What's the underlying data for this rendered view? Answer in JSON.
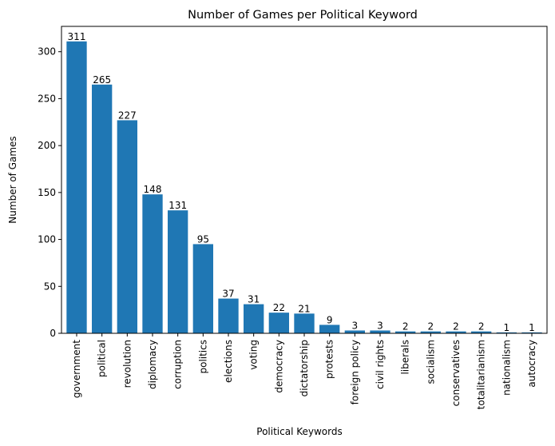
{
  "chart_data": {
    "type": "bar",
    "title": "Number of Games per Political Keyword",
    "xlabel": "Political Keywords",
    "ylabel": "Number of Games",
    "categories": [
      "government",
      "political",
      "revolution",
      "diplomacy",
      "corruption",
      "politics",
      "elections",
      "voting",
      "democracy",
      "dictatorship",
      "protests",
      "foreign policy",
      "civil rights",
      "liberals",
      "socialism",
      "conservatives",
      "totalitarianism",
      "nationalism",
      "autocracy"
    ],
    "values": [
      311,
      265,
      227,
      148,
      131,
      95,
      37,
      31,
      22,
      21,
      9,
      3,
      3,
      2,
      2,
      2,
      2,
      1,
      1
    ],
    "ylim": [
      0,
      327
    ],
    "yticks": [
      0,
      50,
      100,
      150,
      200,
      250,
      300
    ],
    "bar_color": "#1f77b4",
    "grid": false,
    "legend": "none"
  }
}
